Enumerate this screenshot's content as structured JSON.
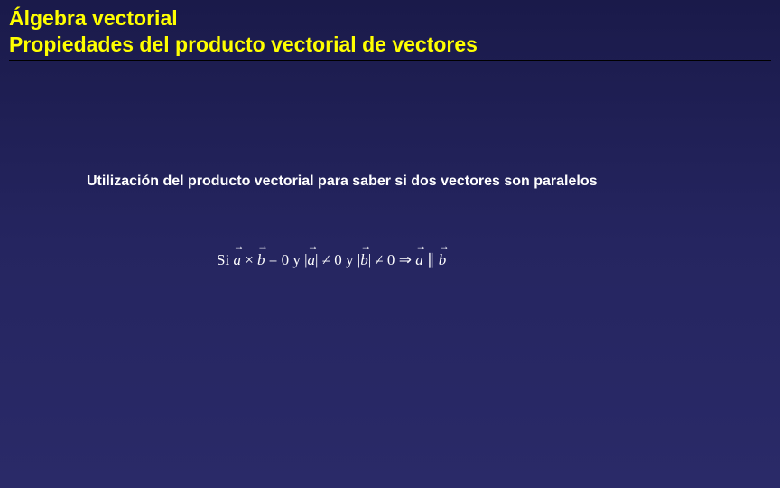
{
  "slide": {
    "title_line1": "Álgebra vectorial",
    "title_line2": "Propiedades del producto vectorial de vectores",
    "subtitle": "Utilización del producto vectorial para saber si dos vectores son paralelos",
    "formula": {
      "prefix": "Si ",
      "vec_a1": "a",
      "cross": " × ",
      "vec_b1": "b",
      "eq_zero": " = 0 ",
      "and1": "y ",
      "abs_open1": "|",
      "vec_a2": "a",
      "abs_close1": "|",
      "neq1": " ≠ 0 ",
      "and2": "y ",
      "abs_open2": "|",
      "vec_b2": "b",
      "abs_close2": "|",
      "neq2": " ≠ 0  ",
      "implies": "⇒ ",
      "vec_a3": "a",
      "parallel": " ∥ ",
      "vec_b3": "b"
    },
    "colors": {
      "title_color": "#ffff00",
      "text_color": "#ffffff",
      "background_start": "#1a1a4a",
      "background_end": "#2a2a68",
      "underline_color": "#000000"
    },
    "typography": {
      "title_fontsize": 23,
      "subtitle_fontsize": 16,
      "formula_fontsize": 17
    }
  }
}
